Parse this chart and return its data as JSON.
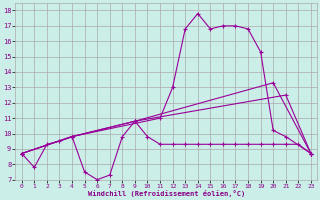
{
  "xlabel": "Windchill (Refroidissement éolien,°C)",
  "bg_color": "#cceee8",
  "line_color": "#990099",
  "grid_color": "#aaaaaa",
  "xlim": [
    -0.5,
    23.5
  ],
  "ylim": [
    7.0,
    18.5
  ],
  "xticks": [
    0,
    1,
    2,
    3,
    4,
    5,
    6,
    7,
    8,
    9,
    10,
    11,
    12,
    13,
    14,
    15,
    16,
    17,
    18,
    19,
    20,
    21,
    22,
    23
  ],
  "yticks": [
    7,
    8,
    9,
    10,
    11,
    12,
    13,
    14,
    15,
    16,
    17,
    18
  ],
  "series1_x": [
    0,
    1,
    2,
    3,
    4,
    5,
    6,
    7,
    8,
    9,
    10,
    11,
    12,
    13,
    14,
    15,
    16,
    17,
    18,
    19,
    20,
    21,
    22,
    23
  ],
  "series1_y": [
    8.7,
    7.8,
    9.3,
    9.5,
    9.8,
    7.5,
    7.0,
    7.3,
    9.8,
    10.8,
    9.8,
    9.3,
    9.3,
    9.3,
    9.3,
    9.3,
    9.3,
    9.3,
    9.3,
    9.3,
    9.3,
    9.3,
    9.3,
    8.7
  ],
  "series2_x": [
    0,
    4,
    9,
    20,
    23
  ],
  "series2_y": [
    8.7,
    9.8,
    10.8,
    13.3,
    8.7
  ],
  "series3_x": [
    0,
    4,
    9,
    21,
    23
  ],
  "series3_y": [
    8.7,
    9.8,
    10.8,
    12.5,
    8.7
  ],
  "series4_x": [
    0,
    4,
    11,
    12,
    13,
    14,
    15,
    16,
    17,
    18,
    19,
    20,
    21,
    23
  ],
  "series4_y": [
    8.7,
    9.8,
    11.0,
    13.0,
    16.8,
    17.8,
    16.8,
    17.0,
    17.0,
    16.8,
    15.3,
    10.2,
    9.8,
    8.7
  ],
  "font_color": "#880088"
}
